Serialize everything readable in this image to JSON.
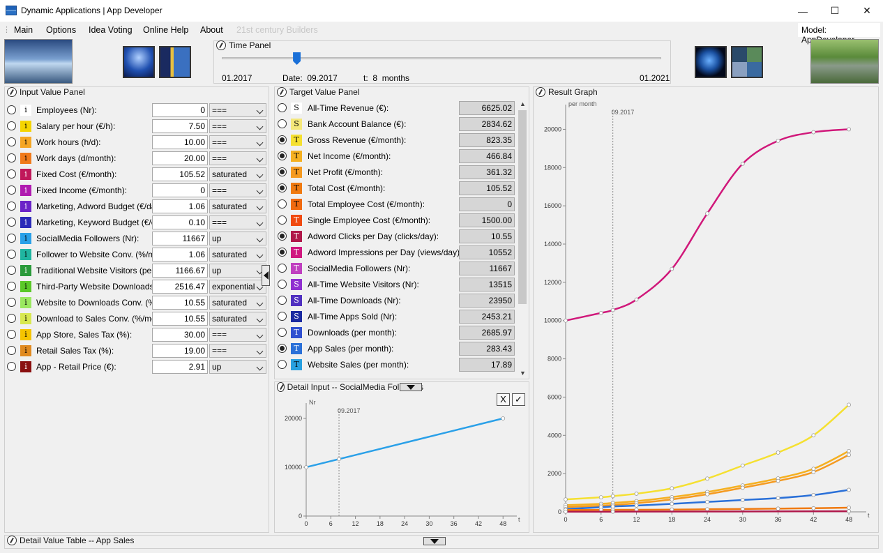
{
  "window": {
    "title": "Dynamic Applications | App Developer",
    "minimize": "—",
    "maximize": "☐",
    "close": "✕"
  },
  "menu": {
    "items": [
      "Main",
      "Options",
      "Idea Voting",
      "Online Help",
      "About"
    ],
    "disabled": "21st century Builders",
    "model_label": "Model:",
    "model_value": "AppDeveloper"
  },
  "time_panel": {
    "title": "Time Panel",
    "start": "01.2017",
    "end": "01.2021",
    "date_label": "Date:",
    "date_value": "09.2017",
    "t_label": "t:",
    "t_value": "8",
    "t_unit": "months",
    "slider_fraction": 0.17
  },
  "input_panel": {
    "title": "Input Value Panel",
    "rows": [
      {
        "badge": "i",
        "color": "#ffffff",
        "label": "Employees (Nr):",
        "value": "0",
        "mode": "===",
        "selected": false
      },
      {
        "badge": "i",
        "color": "#f5d400",
        "label": "Salary per hour (€/h):",
        "value": "7.50",
        "mode": "===",
        "selected": false
      },
      {
        "badge": "i",
        "color": "#f5a623",
        "label": "Work hours (h/d):",
        "value": "10.00",
        "mode": "===",
        "selected": false
      },
      {
        "badge": "i",
        "color": "#f07a1a",
        "label": "Work days (d/month):",
        "value": "20.00",
        "mode": "===",
        "selected": false
      },
      {
        "badge": "i",
        "color": "#c0185a",
        "label": "Fixed Cost (€/month):",
        "value": "105.52",
        "mode": "saturated",
        "selected": false
      },
      {
        "badge": "i",
        "color": "#b01bb0",
        "label": "Fixed Income (€/month):",
        "value": "0",
        "mode": "===",
        "selected": false
      },
      {
        "badge": "i",
        "color": "#6b24c8",
        "label": "Marketing, Adword Budget (€/day):",
        "value": "1.06",
        "mode": "saturated",
        "selected": false
      },
      {
        "badge": "i",
        "color": "#2a2ab8",
        "label": "Marketing, Keyword Budget (€/click",
        "value": "0.10",
        "mode": "===",
        "selected": false
      },
      {
        "badge": "i",
        "color": "#2aa0e8",
        "label": "SocialMedia Followers (Nr):",
        "value": "11667",
        "mode": "up",
        "selected": false
      },
      {
        "badge": "i",
        "color": "#1fb5a0",
        "label": "Follower to Website Conv. (%/month",
        "value": "1.06",
        "mode": "saturated",
        "selected": false
      },
      {
        "badge": "i",
        "color": "#2a9a3a",
        "label": "Traditional Website Visitors (per mon",
        "value": "1166.67",
        "mode": "up",
        "selected": false
      },
      {
        "badge": "i",
        "color": "#5ac828",
        "label": "Third-Party Website Downloads (pe",
        "value": "2516.47",
        "mode": "exponential",
        "selected": false
      },
      {
        "badge": "i",
        "color": "#9ae860",
        "label": "Website to Downloads Conv. (%/mo",
        "value": "10.55",
        "mode": "saturated",
        "selected": false
      },
      {
        "badge": "i",
        "color": "#d8e850",
        "label": "Download to Sales Conv. (%/month",
        "value": "10.55",
        "mode": "saturated",
        "selected": false
      },
      {
        "badge": "i",
        "color": "#f5c400",
        "label": "App Store, Sales Tax (%):",
        "value": "30.00",
        "mode": "===",
        "selected": false
      },
      {
        "badge": "i",
        "color": "#e08a20",
        "label": "Retail Sales Tax (%):",
        "value": "19.00",
        "mode": "===",
        "selected": false
      },
      {
        "badge": "i",
        "color": "#8a1010",
        "label": "App - Retail Price (€):",
        "value": "2.91",
        "mode": "up",
        "selected": false
      }
    ]
  },
  "target_panel": {
    "title": "Target Value Panel",
    "rows": [
      {
        "badge": "S",
        "color": "#ffffff",
        "label": "All-Time Revenue (€):",
        "value": "6625.02",
        "selected": false
      },
      {
        "badge": "S",
        "color": "#f5e87a",
        "label": "Bank Account Balance (€):",
        "value": "2834.62",
        "selected": false
      },
      {
        "badge": "T",
        "color": "#f5e030",
        "label": "Gross Revenue (€/month):",
        "value": "823.35",
        "selected": true
      },
      {
        "badge": "T",
        "color": "#f5b020",
        "label": "Net Income (€/month):",
        "value": "466.84",
        "selected": true
      },
      {
        "badge": "T",
        "color": "#f59a20",
        "label": "Net Profit (€/month):",
        "value": "361.32",
        "selected": true
      },
      {
        "badge": "T",
        "color": "#f07a10",
        "label": "Total Cost (€/month):",
        "value": "105.52",
        "selected": true
      },
      {
        "badge": "T",
        "color": "#f06a10",
        "label": "Total Employee Cost (€/month):",
        "value": "0",
        "selected": false
      },
      {
        "badge": "T",
        "color": "#f04a10",
        "label": "Single Employee Cost (€/month):",
        "value": "1500.00",
        "selected": false
      },
      {
        "badge": "T",
        "color": "#b0184a",
        "label": "Adword Clicks per Day (clicks/day):",
        "value": "10.55",
        "selected": true
      },
      {
        "badge": "T",
        "color": "#d01880",
        "label": "Adword Impressions per Day (views/day):",
        "value": "10552",
        "selected": true
      },
      {
        "badge": "T",
        "color": "#c040c0",
        "label": "SocialMedia Followers (Nr):",
        "value": "11667",
        "selected": false
      },
      {
        "badge": "S",
        "color": "#9030d0",
        "label": "All-Time Website Visitors (Nr):",
        "value": "13515",
        "selected": false
      },
      {
        "badge": "S",
        "color": "#5030c0",
        "label": "All-Time Downloads (Nr):",
        "value": "23950",
        "selected": false
      },
      {
        "badge": "S",
        "color": "#1a2aa0",
        "label": "All-Time Apps Sold (Nr):",
        "value": "2453.21",
        "selected": false
      },
      {
        "badge": "T",
        "color": "#3050d0",
        "label": "Downloads (per month):",
        "value": "2685.97",
        "selected": false
      },
      {
        "badge": "T",
        "color": "#2a70d8",
        "label": "App Sales (per month):",
        "value": "283.43",
        "selected": true
      },
      {
        "badge": "T",
        "color": "#28a0e0",
        "label": "Website Sales (per month):",
        "value": "17.89",
        "selected": false
      }
    ]
  },
  "detail_input": {
    "title": "Detail Input -- SocialMedia Followers",
    "cancel": "X",
    "ok": "✓",
    "ylabel": "Nr",
    "xlabel": "t",
    "marker": "09.2017"
  },
  "result_graph": {
    "title": "Result Graph",
    "ylabel": "per month",
    "xlabel": "t",
    "marker": "09.2017"
  },
  "detail_table": {
    "title": "Detail Value Table -- App Sales"
  },
  "chart_data": [
    {
      "type": "line",
      "title": "",
      "ylabel": "Nr",
      "xlabel": "t",
      "ylim": [
        0,
        22000
      ],
      "xlim": [
        0,
        50
      ],
      "y_ticks": [
        0,
        10000,
        20000
      ],
      "x_ticks": [
        0,
        6,
        12,
        18,
        24,
        30,
        36,
        42,
        48
      ],
      "series": [
        {
          "color": "#2aa0e8",
          "x": [
            0,
            8,
            48
          ],
          "y": [
            10000,
            11667,
            20000
          ]
        }
      ]
    },
    {
      "type": "line",
      "title": "",
      "ylabel": "per month",
      "xlabel": "t",
      "ylim": [
        0,
        21000
      ],
      "xlim": [
        0,
        50
      ],
      "y_ticks": [
        0,
        2000,
        4000,
        6000,
        8000,
        10000,
        12000,
        14000,
        16000,
        18000,
        20000
      ],
      "x_ticks": [
        0,
        6,
        12,
        18,
        24,
        30,
        36,
        42,
        48
      ],
      "series": [
        {
          "color": "#d0187a",
          "x": [
            0,
            6,
            8,
            12,
            18,
            24,
            30,
            36,
            42,
            48
          ],
          "y": [
            10000,
            10400,
            10552,
            11100,
            12700,
            15600,
            18200,
            19400,
            19850,
            20000
          ]
        },
        {
          "color": "#f5e030",
          "x": [
            0,
            6,
            8,
            12,
            18,
            24,
            30,
            36,
            42,
            48
          ],
          "y": [
            650,
            760,
            823,
            950,
            1230,
            1740,
            2420,
            3100,
            4000,
            5600
          ]
        },
        {
          "color": "#f5b020",
          "x": [
            0,
            6,
            8,
            12,
            18,
            24,
            30,
            36,
            42,
            48
          ],
          "y": [
            350,
            420,
            467,
            560,
            770,
            1040,
            1380,
            1750,
            2250,
            3180
          ]
        },
        {
          "color": "#f59a20",
          "x": [
            0,
            6,
            8,
            12,
            18,
            24,
            30,
            36,
            42,
            48
          ],
          "y": [
            250,
            320,
            361,
            450,
            650,
            920,
            1260,
            1620,
            2080,
            2980
          ]
        },
        {
          "color": "#2a70d8",
          "x": [
            0,
            6,
            8,
            12,
            18,
            24,
            30,
            36,
            42,
            48
          ],
          "y": [
            150,
            240,
            283,
            330,
            420,
            520,
            620,
            720,
            880,
            1150
          ]
        },
        {
          "color": "#f07a10",
          "x": [
            0,
            6,
            8,
            12,
            18,
            24,
            30,
            36,
            42,
            48
          ],
          "y": [
            100,
            104,
            106,
            110,
            120,
            135,
            150,
            170,
            190,
            220
          ]
        },
        {
          "color": "#b0184a",
          "x": [
            0,
            8,
            48
          ],
          "y": [
            8,
            11,
            30
          ]
        }
      ]
    }
  ]
}
